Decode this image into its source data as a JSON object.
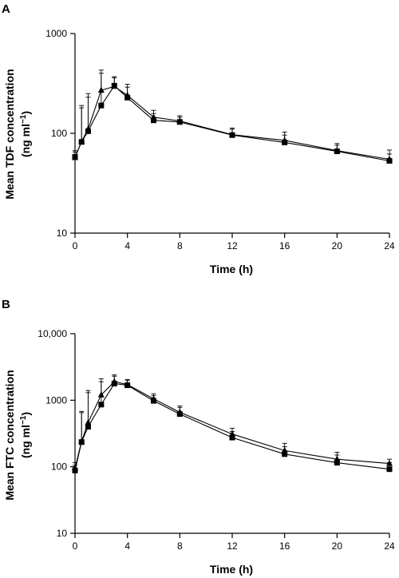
{
  "chart_data": [
    {
      "type": "line",
      "panel_label": "A",
      "title": "",
      "xlabel": "Time (h)",
      "ylabel_main": "Mean TDF concentration",
      "ylabel_unit_pre": "(ng ml",
      "ylabel_unit_sup": "−1",
      "ylabel_unit_post": ")",
      "y_scale": "log",
      "ylim": [
        10,
        1000
      ],
      "xlim": [
        0,
        24
      ],
      "x_ticks": [
        0,
        4,
        8,
        12,
        16,
        20,
        24
      ],
      "y_ticks": [
        10,
        100,
        1000
      ],
      "y_tick_labels": [
        "10",
        "100",
        "1000"
      ],
      "grid": false,
      "x": [
        0,
        0.5,
        1,
        2,
        3,
        4,
        6,
        8,
        12,
        16,
        20,
        24
      ],
      "series": [
        {
          "marker": "triangle",
          "values": [
            57,
            83,
            110,
            270,
            295,
            240,
            145,
            133,
            97,
            85,
            67,
            55
          ],
          "err_upper": [
            67,
            190,
            250,
            430,
            370,
            310,
            170,
            150,
            113,
            103,
            79,
            68
          ]
        },
        {
          "marker": "square",
          "values": [
            58,
            82,
            105,
            190,
            300,
            228,
            135,
            130,
            96,
            81,
            66,
            53
          ],
          "err_upper": [
            65,
            180,
            230,
            400,
            360,
            290,
            158,
            145,
            110,
            96,
            76,
            62
          ]
        }
      ]
    },
    {
      "type": "line",
      "panel_label": "B",
      "title": "",
      "xlabel": "Time (h)",
      "ylabel_main": "Mean FTC concentration",
      "ylabel_unit_pre": "(ng ml",
      "ylabel_unit_sup": "−1",
      "ylabel_unit_post": ")",
      "y_scale": "log",
      "ylim": [
        10,
        10000
      ],
      "xlim": [
        0,
        24
      ],
      "x_ticks": [
        0,
        4,
        8,
        12,
        16,
        20,
        24
      ],
      "y_ticks": [
        10,
        100,
        1000,
        10000
      ],
      "y_tick_labels": [
        "10",
        "100",
        "1000",
        "10,000"
      ],
      "grid": false,
      "x": [
        0,
        0.5,
        1,
        2,
        3,
        4,
        6,
        8,
        12,
        16,
        20,
        24
      ],
      "series": [
        {
          "marker": "triangle",
          "values": [
            95,
            240,
            460,
            1200,
            1900,
            1720,
            1050,
            660,
            310,
            175,
            130,
            112
          ],
          "err_upper": [
            115,
            650,
            1400,
            2100,
            2400,
            2050,
            1250,
            820,
            380,
            225,
            165,
            130
          ]
        },
        {
          "marker": "square",
          "values": [
            88,
            235,
            400,
            860,
            1780,
            1680,
            980,
            620,
            275,
            155,
            115,
            92
          ],
          "err_upper": [
            105,
            680,
            1300,
            1900,
            2300,
            2000,
            1180,
            780,
            340,
            200,
            150,
            115
          ]
        }
      ]
    }
  ]
}
